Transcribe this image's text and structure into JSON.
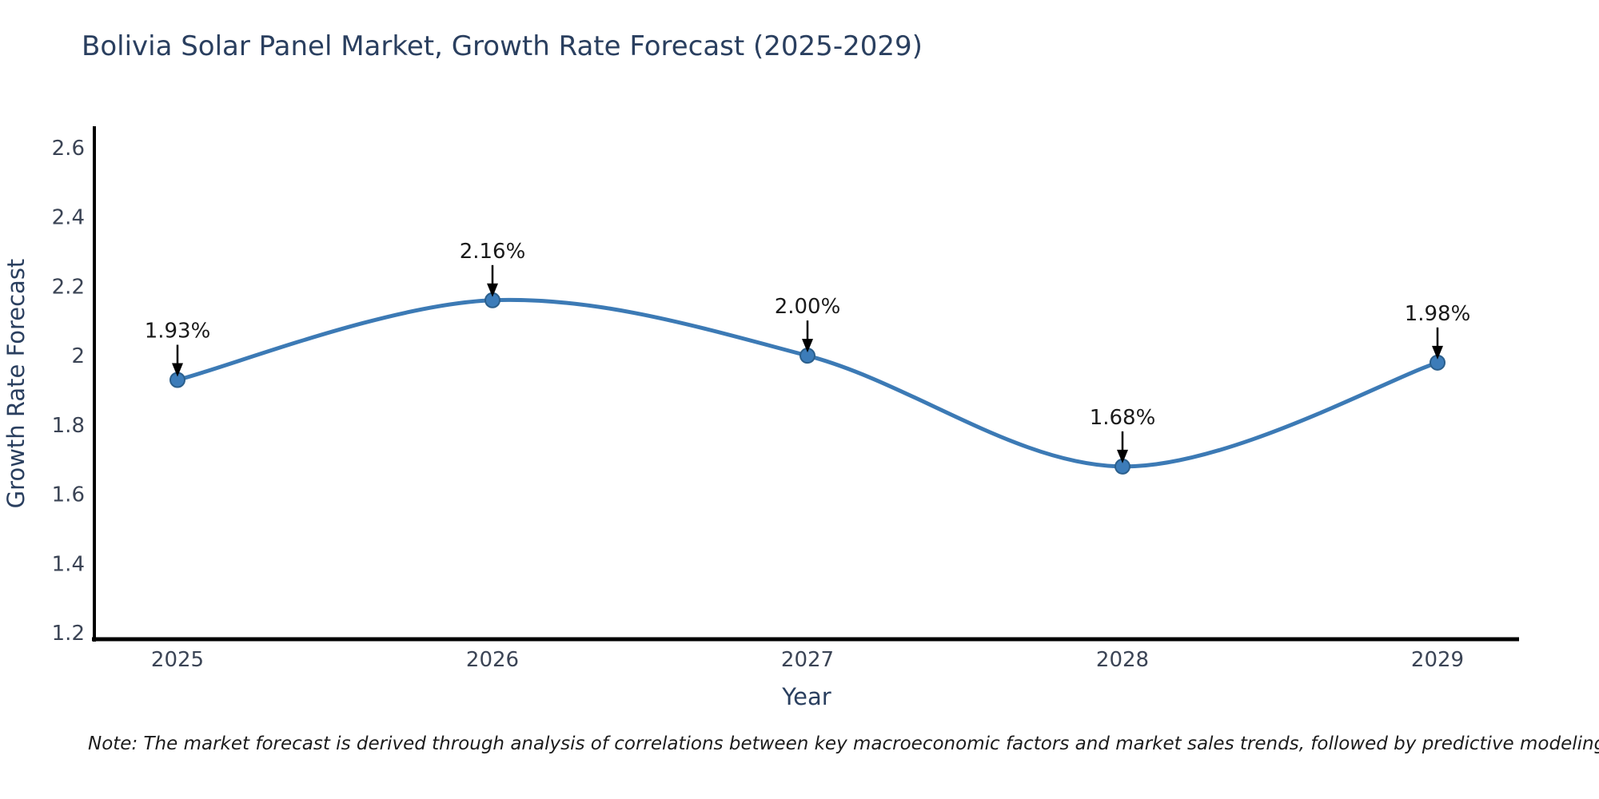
{
  "page": {
    "note": "Note: The market forecast is derived through analysis of correlations between key macroeconomic factors and market sales trends, followed by predictive modeling to project future sales"
  },
  "chart_data": {
    "type": "line",
    "title": "Bolivia Solar Panel Market, Growth Rate Forecast (2025-2029)",
    "xlabel": "Year",
    "ylabel": "Growth Rate Forecast",
    "categories": [
      "2025",
      "2026",
      "2027",
      "2028",
      "2029"
    ],
    "series": [
      {
        "name": "Growth Rate Forecast",
        "values": [
          1.93,
          2.16,
          2.0,
          1.68,
          1.98
        ]
      }
    ],
    "point_labels": [
      "1.93%",
      "2.16%",
      "2.00%",
      "1.68%",
      "1.98%"
    ],
    "yticks": [
      "2.6",
      "2.4",
      "2.2",
      "2",
      "1.8",
      "1.6",
      "1.4",
      "1.2"
    ],
    "ytick_values": [
      2.6,
      2.4,
      2.2,
      2.0,
      1.8,
      1.6,
      1.4,
      1.2
    ],
    "ylim": [
      1.2,
      2.6
    ],
    "grid": false,
    "legend": "none",
    "line_shape": "spline",
    "marker": "circle",
    "annotations_arrow": "down-black",
    "colors": {
      "line": "#3C7AB5",
      "marker_fill": "#3C7CB9",
      "marker_edge": "#2B5F8C",
      "arrow": "#000000",
      "axis": "#000000",
      "title_text": "#2A3F5F",
      "tick_text": "#3B4455",
      "annotation_text": "#1A1A1A",
      "background": "#FFFFFF"
    }
  }
}
